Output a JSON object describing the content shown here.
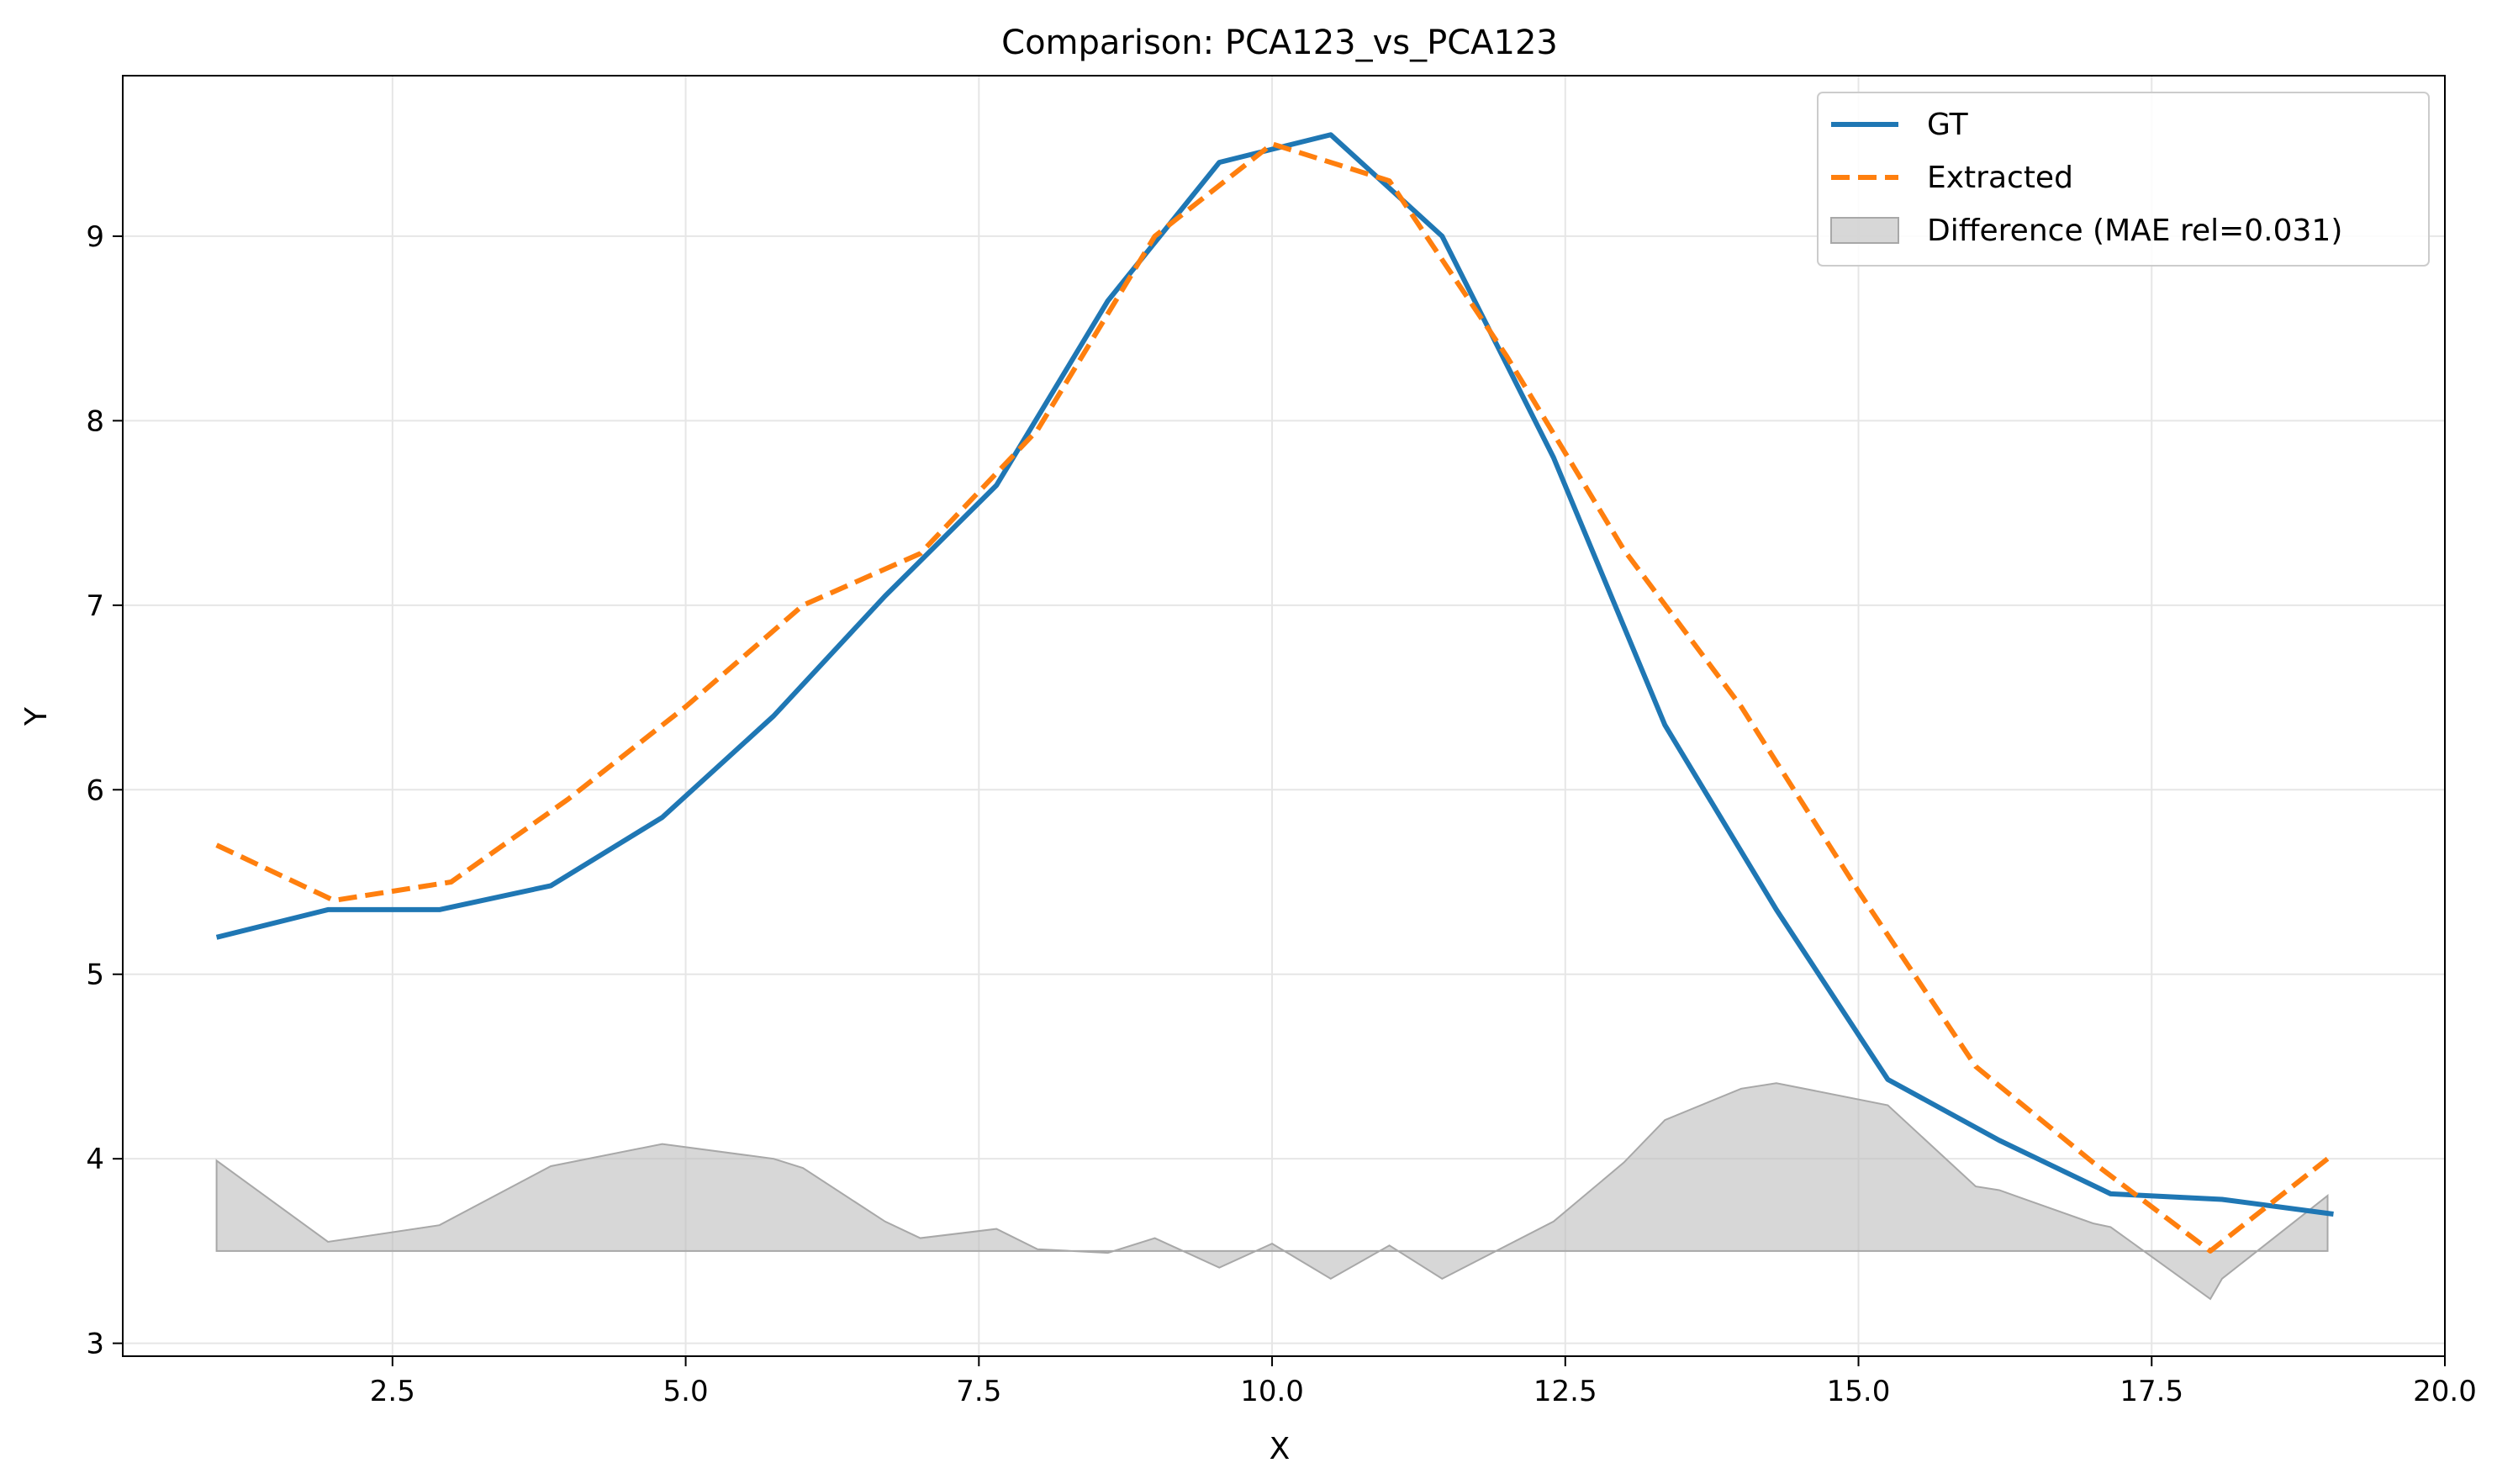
{
  "chart_data": {
    "type": "line",
    "title": "Comparison: PCA123_vs_PCA123",
    "xlabel": "X",
    "ylabel": "Y",
    "xlim": [
      0.2,
      20.0
    ],
    "ylim": [
      2.93,
      9.87
    ],
    "xticks": [
      2.5,
      5.0,
      7.5,
      10.0,
      12.5,
      15.0,
      17.5,
      20.0
    ],
    "xtick_labels": [
      "2.5",
      "5.0",
      "7.5",
      "10.0",
      "12.5",
      "15.0",
      "17.5",
      "20.0"
    ],
    "yticks": [
      3,
      4,
      5,
      6,
      7,
      8,
      9
    ],
    "ytick_labels": [
      "3",
      "4",
      "5",
      "6",
      "7",
      "8",
      "9"
    ],
    "grid": true,
    "legend_position": "top-right",
    "series": [
      {
        "name": "GT",
        "style": "solid",
        "color": "#1f77b4",
        "x": [
          1.0,
          1.95,
          2.9,
          3.85,
          4.8,
          5.75,
          6.7,
          7.65,
          8.6,
          9.55,
          10.5,
          11.45,
          12.4,
          13.35,
          14.3,
          15.25,
          16.2,
          17.15,
          18.1,
          19.05
        ],
        "y": [
          5.2,
          5.35,
          5.35,
          5.48,
          5.85,
          6.4,
          7.05,
          7.65,
          8.65,
          9.4,
          9.55,
          9.0,
          7.8,
          6.35,
          5.35,
          4.43,
          4.1,
          3.81,
          3.78,
          3.7
        ]
      },
      {
        "name": "Extracted",
        "style": "dashed",
        "color": "#ff7f0e",
        "x": [
          1.0,
          2.0,
          3.0,
          4.0,
          5.0,
          6.0,
          7.0,
          8.0,
          9.0,
          10.0,
          11.0,
          12.0,
          13.0,
          14.0,
          15.0,
          16.0,
          17.0,
          18.0,
          19.0
        ],
        "y": [
          5.7,
          5.4,
          5.5,
          5.95,
          6.45,
          7.0,
          7.28,
          7.95,
          9.0,
          9.5,
          9.3,
          8.35,
          7.3,
          6.45,
          5.45,
          4.5,
          3.98,
          3.5,
          4.0
        ]
      },
      {
        "name": "Difference (MAE rel=0.031)",
        "style": "fill",
        "color": "#bdbdbd",
        "baseline": 3.5,
        "x": [
          1.0,
          1.95,
          2.9,
          3.85,
          4.8,
          5.75,
          6.0,
          6.7,
          7.0,
          7.65,
          8.0,
          8.6,
          9.0,
          9.55,
          10.0,
          10.5,
          11.0,
          11.45,
          12.4,
          13.0,
          13.35,
          14.0,
          14.3,
          15.25,
          16.0,
          16.2,
          17.0,
          17.15,
          18.0,
          18.1,
          19.0
        ],
        "y": [
          3.99,
          3.55,
          3.64,
          3.96,
          4.08,
          4.0,
          3.95,
          3.66,
          3.57,
          3.62,
          3.51,
          3.49,
          3.57,
          3.41,
          3.54,
          3.35,
          3.53,
          3.35,
          3.66,
          3.98,
          4.21,
          4.38,
          4.41,
          4.29,
          3.85,
          3.83,
          3.65,
          3.63,
          3.24,
          3.35,
          3.8
        ]
      }
    ]
  }
}
